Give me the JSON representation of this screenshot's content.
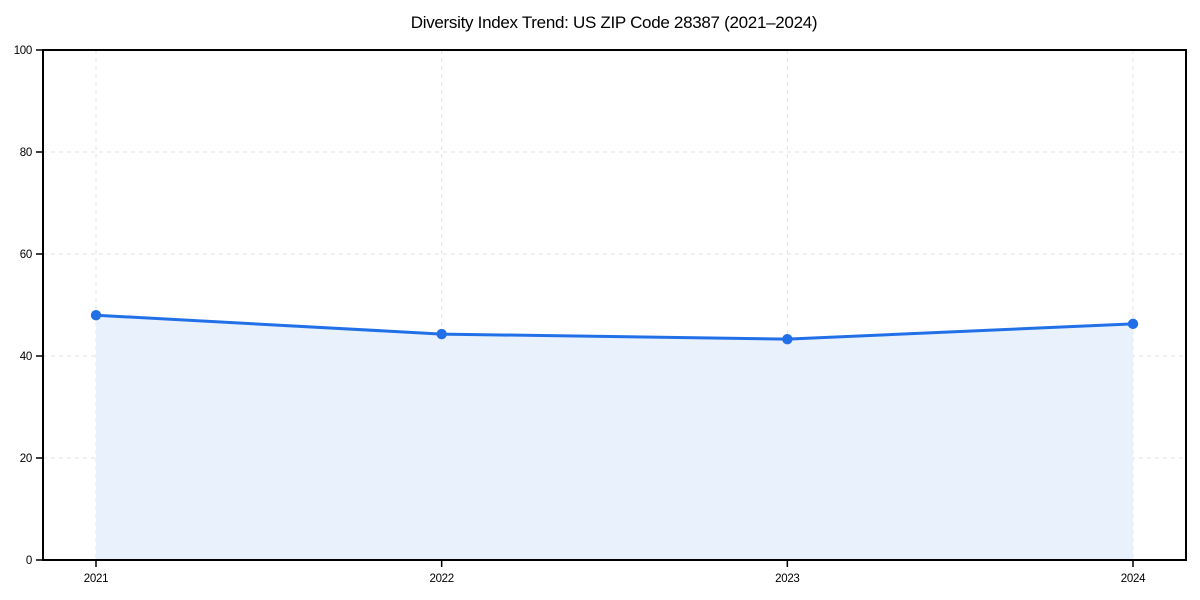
{
  "page": {
    "background_color": "#ffffff"
  },
  "chart_data": {
    "type": "area",
    "title": "Diversity Index Trend: US ZIP Code 28387 (2021–2024)",
    "x": [
      "2021",
      "2022",
      "2023",
      "2024"
    ],
    "series": [
      {
        "name": "Diversity Index",
        "values": [
          48.0,
          44.3,
          43.3,
          46.3
        ]
      }
    ],
    "xlabel": "",
    "ylabel": "",
    "ylim": [
      0,
      100
    ],
    "yticks": [
      0,
      20,
      40,
      60,
      80,
      100
    ],
    "xtick_labels": [
      "2021",
      "2022",
      "2023",
      "2024"
    ],
    "grid": true,
    "grid_style": "dashed",
    "legend_position": "none",
    "line_color": "#2170e8",
    "marker": "circle",
    "marker_color": "#2170e8",
    "fill_color": "#e9f1fc",
    "grid_color": "#e3e3e3",
    "axis_color": "#000000",
    "text_color": "#000000"
  }
}
